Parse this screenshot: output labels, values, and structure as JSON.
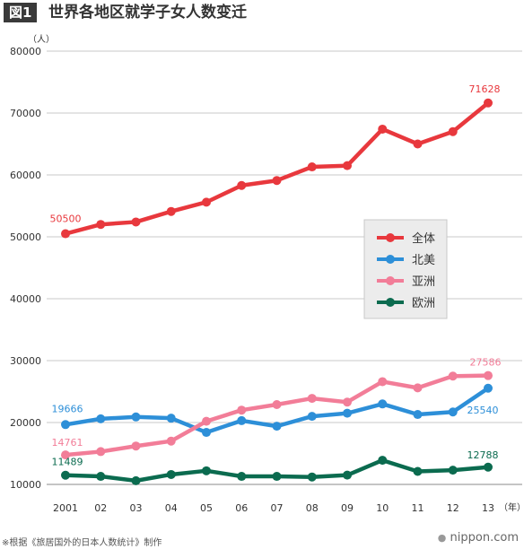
{
  "header": {
    "badge": "図1",
    "title": "世界各地区就学子女人数变迁"
  },
  "chart_data": {
    "type": "line",
    "title": "世界各地区就学子女人数变迁",
    "ylabel": "（人）",
    "xlabel": "（年）",
    "ylim": [
      10000,
      80000
    ],
    "yticks": [
      10000,
      20000,
      30000,
      40000,
      50000,
      60000,
      70000,
      80000
    ],
    "categories": [
      "2001",
      "02",
      "03",
      "04",
      "05",
      "06",
      "07",
      "08",
      "09",
      "10",
      "11",
      "12",
      "13"
    ],
    "grid": true,
    "legend_position": "center-right",
    "series": [
      {
        "name": "全体",
        "color": "#e8383d",
        "values": [
          50500,
          52000,
          52400,
          54100,
          55600,
          58300,
          59100,
          61300,
          61500,
          67400,
          65000,
          67000,
          71628
        ]
      },
      {
        "name": "北美",
        "color": "#2d8fd8",
        "values": [
          19666,
          20600,
          20900,
          20700,
          18400,
          20300,
          19400,
          21000,
          21500,
          23000,
          21300,
          21700,
          25540
        ]
      },
      {
        "name": "亚洲",
        "color": "#f27d98",
        "values": [
          14761,
          15300,
          16200,
          17000,
          20200,
          22000,
          22900,
          23900,
          23300,
          26600,
          25600,
          27500,
          27586
        ]
      },
      {
        "name": "欧洲",
        "color": "#0b6b4f",
        "values": [
          11489,
          11300,
          10600,
          11600,
          12200,
          11300,
          11300,
          11200,
          11500,
          13900,
          12100,
          12300,
          12788
        ]
      }
    ],
    "annotations": [
      {
        "series": 0,
        "point": "first",
        "text": "50500"
      },
      {
        "series": 0,
        "point": "last",
        "text": "71628"
      },
      {
        "series": 1,
        "point": "first",
        "text": "19666"
      },
      {
        "series": 1,
        "point": "last",
        "text": "25540"
      },
      {
        "series": 2,
        "point": "first",
        "text": "14761"
      },
      {
        "series": 2,
        "point": "last",
        "text": "27586"
      },
      {
        "series": 3,
        "point": "first",
        "text": "11489"
      },
      {
        "series": 3,
        "point": "last",
        "text": "12788"
      }
    ]
  },
  "footer": {
    "note": "※根据《旅居国外的日本人数统计》制作",
    "brand": "nippon.com",
    "brand_dot": "●"
  }
}
